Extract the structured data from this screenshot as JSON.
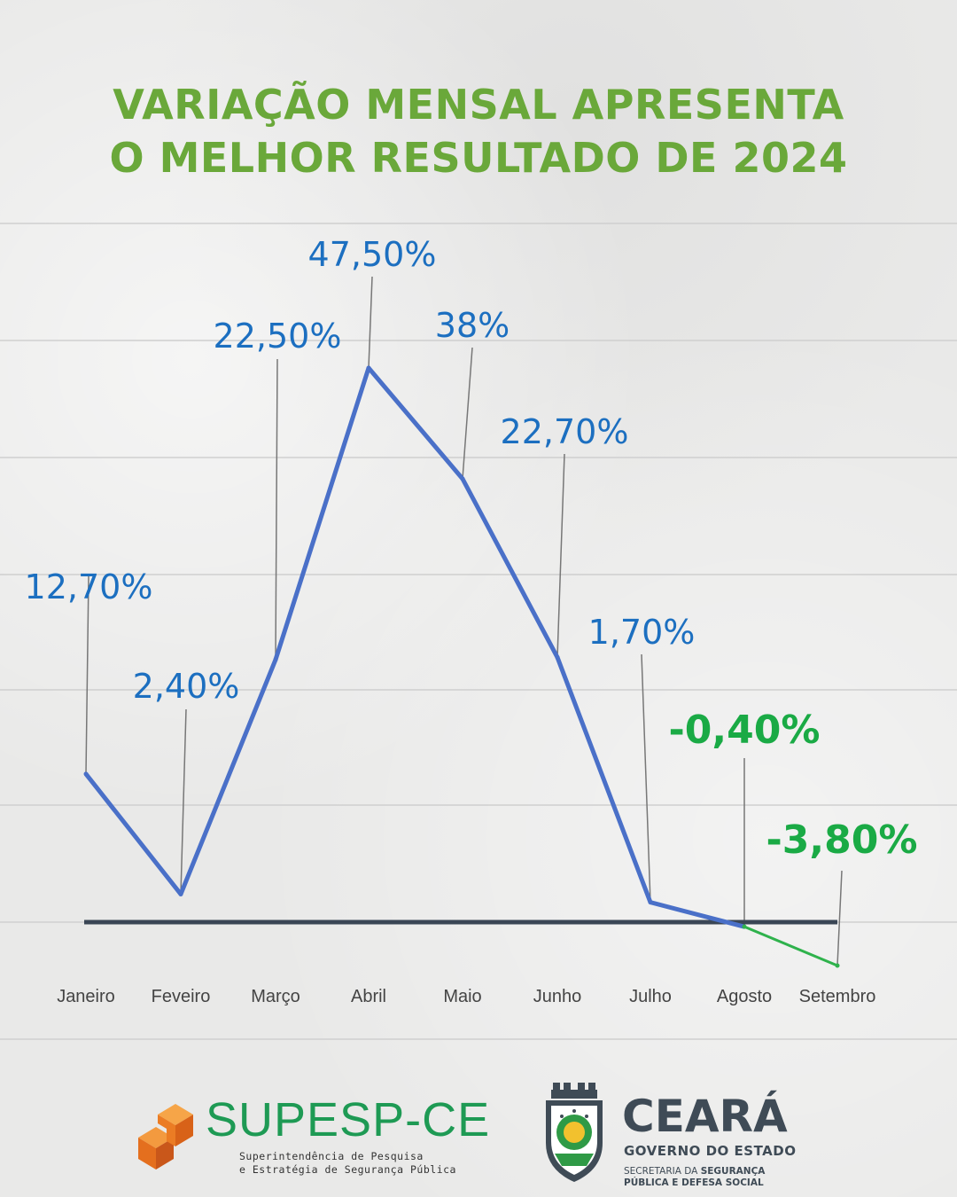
{
  "title_line1": "VARIAÇÃO MENSAL APRESENTA",
  "title_line2": "O MELHOR RESULTADO DE 2024",
  "colors": {
    "title": "#6aa83a",
    "positive_line": "#4a70c8",
    "positive_label": "#1c6fc0",
    "negative_line": "#2fb24c",
    "negative_label": "#1aaa45",
    "baseline": "#3a4655"
  },
  "chart_data": {
    "type": "line",
    "categories": [
      "Janeiro",
      "Feveiro",
      "Março",
      "Abril",
      "Maio",
      "Junho",
      "Julho",
      "Agosto",
      "Setembro"
    ],
    "values": [
      12.7,
      2.4,
      22.5,
      47.5,
      38,
      22.7,
      1.7,
      -0.4,
      -3.8
    ],
    "labels": [
      "12,70%",
      "2,40%",
      "22,50%",
      "47,50%",
      "38%",
      "22,70%",
      "1,70%",
      "-0,40%",
      "-3,80%"
    ],
    "ylim": [
      -3.8,
      47.5
    ],
    "grid": true,
    "baseline": 0,
    "xlabel": "",
    "ylabel": ""
  },
  "footer": {
    "supesp_name": "SUPESP-CE",
    "supesp_sub1": "Superintendência de Pesquisa",
    "supesp_sub2": "e Estratégia de Segurança Pública",
    "ceara_name": "CEARÁ",
    "ceara_gov": "GOVERNO DO ESTADO",
    "ceara_sec1_pre": "SECRETARIA DA ",
    "ceara_sec1_bold": "SEGURANÇA",
    "ceara_sec2": "PÚBLICA E DEFESA SOCIAL"
  }
}
